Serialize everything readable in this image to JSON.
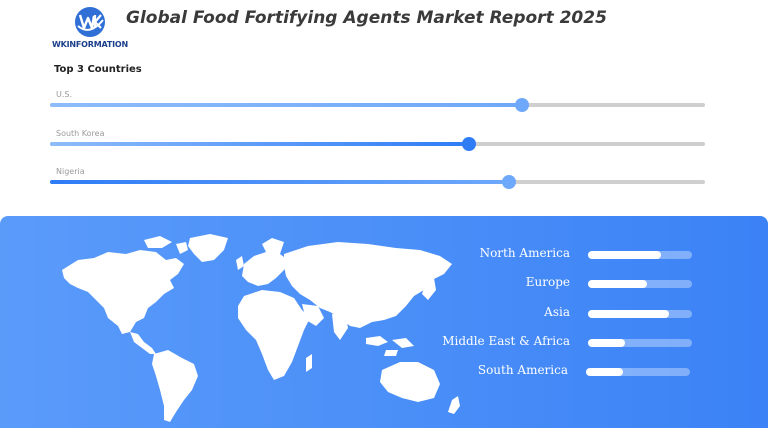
{
  "header": {
    "logo_text": "WKINFORMATION",
    "logo_icon": "wk-globe-logo",
    "title": "Global Food Fortifying Agents Market Report 2025"
  },
  "colors": {
    "accent": "#2e7cf6",
    "accent_light": "#6ea8fa",
    "track": "#cfcfcf",
    "panel": "#4b8ff8"
  },
  "chart_data": [
    {
      "type": "bar",
      "title": "Top 3 Countries",
      "categories": [
        "U.S.",
        "South Korea",
        "Nigeria"
      ],
      "values": [
        0.72,
        0.64,
        0.7
      ],
      "ylim": [
        0,
        1
      ]
    },
    {
      "type": "bar",
      "categories": [
        "North America",
        "Europe",
        "Asia",
        "Middle East & Africa",
        "South America"
      ],
      "values": [
        0.7,
        0.57,
        0.78,
        0.36,
        0.36
      ],
      "ylim": [
        0,
        1
      ]
    }
  ]
}
